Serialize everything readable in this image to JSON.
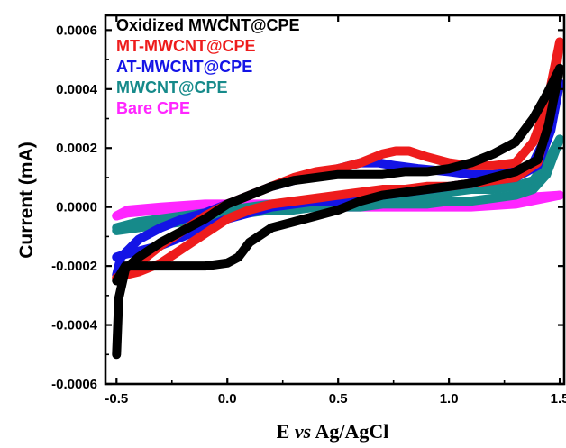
{
  "chart_data": {
    "type": "line",
    "title": "",
    "xlabel": "E vs Ag/AgCl",
    "xlabel_parts": {
      "start": "E ",
      "italic": "vs",
      "end": " Ag/AgCl"
    },
    "ylabel": "Current (mA)",
    "xlim": [
      -0.55,
      1.52
    ],
    "ylim": [
      -0.0006,
      0.00065
    ],
    "x_ticks": [
      -0.5,
      0.0,
      0.5,
      1.0,
      1.5
    ],
    "x_tick_labels": [
      "-0.5",
      "0.0",
      "0.5",
      "1.0",
      "1.5"
    ],
    "y_ticks": [
      -0.0006,
      -0.0004,
      -0.0002,
      0.0,
      0.0002,
      0.0004,
      0.0006
    ],
    "y_tick_labels": [
      "-0.0006",
      "-0.0004",
      "-0.0002",
      "0.0000",
      "0.0002",
      "0.0004",
      "0.0006"
    ],
    "grid": false,
    "legend_position": "top-left",
    "series": [
      {
        "name": "Oxidized MWCNT@CPE",
        "color": "#000000",
        "forward": [
          [
            -0.5,
            -0.0005
          ],
          [
            -0.49,
            -0.00031
          ],
          [
            -0.46,
            -0.00021
          ],
          [
            -0.4,
            -0.00017
          ],
          [
            -0.3,
            -0.00012
          ],
          [
            -0.2,
            -8e-05
          ],
          [
            -0.1,
            -4e-05
          ],
          [
            0.0,
            1e-05
          ],
          [
            0.1,
            4e-05
          ],
          [
            0.2,
            7e-05
          ],
          [
            0.3,
            9e-05
          ],
          [
            0.4,
            0.0001
          ],
          [
            0.5,
            0.00011
          ],
          [
            0.6,
            0.00011
          ],
          [
            0.7,
            0.00011
          ],
          [
            0.8,
            0.00012
          ],
          [
            0.9,
            0.00012
          ],
          [
            1.0,
            0.00013
          ],
          [
            1.1,
            0.00015
          ],
          [
            1.2,
            0.00018
          ],
          [
            1.3,
            0.00022
          ],
          [
            1.38,
            0.0003
          ],
          [
            1.44,
            0.00038
          ],
          [
            1.5,
            0.00047
          ]
        ],
        "reverse": [
          [
            1.5,
            0.00047
          ],
          [
            1.45,
            0.00028
          ],
          [
            1.4,
            0.00016
          ],
          [
            1.3,
            0.00012
          ],
          [
            1.2,
            0.0001
          ],
          [
            1.1,
            8e-05
          ],
          [
            1.0,
            7e-05
          ],
          [
            0.9,
            6e-05
          ],
          [
            0.8,
            5e-05
          ],
          [
            0.7,
            4e-05
          ],
          [
            0.6,
            2e-05
          ],
          [
            0.5,
            -1e-05
          ],
          [
            0.4,
            -3e-05
          ],
          [
            0.3,
            -5e-05
          ],
          [
            0.2,
            -7e-05
          ],
          [
            0.1,
            -0.00012
          ],
          [
            0.05,
            -0.00017
          ],
          [
            0.0,
            -0.00019
          ],
          [
            -0.1,
            -0.0002
          ],
          [
            -0.2,
            -0.0002
          ],
          [
            -0.3,
            -0.0002
          ],
          [
            -0.4,
            -0.0002
          ],
          [
            -0.46,
            -0.0002
          ],
          [
            -0.5,
            -0.00025
          ]
        ]
      },
      {
        "name": "MT-MWCNT@CPE",
        "color": "#ee1c1c",
        "forward": [
          [
            -0.5,
            -0.00024
          ],
          [
            -0.45,
            -0.00022
          ],
          [
            -0.4,
            -0.00019
          ],
          [
            -0.3,
            -0.00013
          ],
          [
            -0.2,
            -8e-05
          ],
          [
            -0.1,
            -3e-05
          ],
          [
            0.0,
            1e-05
          ],
          [
            0.1,
            4e-05
          ],
          [
            0.2,
            7e-05
          ],
          [
            0.3,
            0.0001
          ],
          [
            0.4,
            0.00012
          ],
          [
            0.5,
            0.00013
          ],
          [
            0.6,
            0.00015
          ],
          [
            0.7,
            0.00018
          ],
          [
            0.76,
            0.00019
          ],
          [
            0.82,
            0.00019
          ],
          [
            0.9,
            0.00017
          ],
          [
            1.0,
            0.00015
          ],
          [
            1.1,
            0.00014
          ],
          [
            1.2,
            0.00014
          ],
          [
            1.3,
            0.00015
          ],
          [
            1.38,
            0.00022
          ],
          [
            1.44,
            0.00034
          ],
          [
            1.5,
            0.00056
          ]
        ],
        "reverse": [
          [
            1.5,
            0.00056
          ],
          [
            1.46,
            0.00033
          ],
          [
            1.4,
            0.00015
          ],
          [
            1.3,
            0.0001
          ],
          [
            1.2,
            9e-05
          ],
          [
            1.1,
            8e-05
          ],
          [
            1.0,
            7e-05
          ],
          [
            0.9,
            7e-05
          ],
          [
            0.8,
            6e-05
          ],
          [
            0.7,
            6e-05
          ],
          [
            0.6,
            5e-05
          ],
          [
            0.5,
            4e-05
          ],
          [
            0.4,
            3e-05
          ],
          [
            0.3,
            2e-05
          ],
          [
            0.2,
            1e-05
          ],
          [
            0.1,
            -1e-05
          ],
          [
            0.0,
            -4e-05
          ],
          [
            -0.1,
            -9e-05
          ],
          [
            -0.2,
            -0.00014
          ],
          [
            -0.3,
            -0.00019
          ],
          [
            -0.4,
            -0.00022
          ],
          [
            -0.46,
            -0.00023
          ],
          [
            -0.5,
            -0.00024
          ]
        ]
      },
      {
        "name": "AT-MWCNT@CPE",
        "color": "#1414e6",
        "forward": [
          [
            -0.5,
            -0.00023
          ],
          [
            -0.48,
            -0.00017
          ],
          [
            -0.44,
            -0.00014
          ],
          [
            -0.4,
            -0.00011
          ],
          [
            -0.3,
            -7e-05
          ],
          [
            -0.2,
            -4e-05
          ],
          [
            -0.1,
            -2e-05
          ],
          [
            0.0,
            1e-05
          ],
          [
            0.1,
            4e-05
          ],
          [
            0.2,
            7e-05
          ],
          [
            0.3,
            9e-05
          ],
          [
            0.4,
            0.00011
          ],
          [
            0.5,
            0.00013
          ],
          [
            0.6,
            0.00015
          ],
          [
            0.68,
            0.00015
          ],
          [
            0.76,
            0.00014
          ],
          [
            0.86,
            0.00013
          ],
          [
            1.0,
            0.00012
          ],
          [
            1.1,
            0.00011
          ],
          [
            1.2,
            0.00011
          ],
          [
            1.3,
            0.00012
          ],
          [
            1.38,
            0.00015
          ],
          [
            1.44,
            0.00024
          ],
          [
            1.5,
            0.00042
          ]
        ],
        "reverse": [
          [
            1.5,
            0.00042
          ],
          [
            1.46,
            0.00026
          ],
          [
            1.4,
            0.00014
          ],
          [
            1.3,
            0.0001
          ],
          [
            1.2,
            9e-05
          ],
          [
            1.1,
            8e-05
          ],
          [
            1.0,
            7e-05
          ],
          [
            0.9,
            6e-05
          ],
          [
            0.8,
            5e-05
          ],
          [
            0.7,
            4e-05
          ],
          [
            0.6,
            3e-05
          ],
          [
            0.5,
            2e-05
          ],
          [
            0.4,
            2e-05
          ],
          [
            0.3,
            1e-05
          ],
          [
            0.2,
            0.0
          ],
          [
            0.1,
            -2e-05
          ],
          [
            0.0,
            -4e-05
          ],
          [
            -0.1,
            -7e-05
          ],
          [
            -0.2,
            -0.0001
          ],
          [
            -0.3,
            -0.00013
          ],
          [
            -0.4,
            -0.00015
          ],
          [
            -0.46,
            -0.00016
          ],
          [
            -0.5,
            -0.00017
          ]
        ]
      },
      {
        "name": "MWCNT@CPE",
        "color": "#168a8a",
        "forward": [
          [
            -0.5,
            -7e-05
          ],
          [
            -0.4,
            -5e-05
          ],
          [
            -0.3,
            -4e-05
          ],
          [
            -0.2,
            -3e-05
          ],
          [
            -0.1,
            -2e-05
          ],
          [
            0.0,
            -1e-05
          ],
          [
            0.1,
            0.0
          ],
          [
            0.2,
            1e-05
          ],
          [
            0.3,
            1e-05
          ],
          [
            0.4,
            2e-05
          ],
          [
            0.5,
            2e-05
          ],
          [
            0.6,
            3e-05
          ],
          [
            0.7,
            3e-05
          ],
          [
            0.8,
            4e-05
          ],
          [
            0.9,
            4e-05
          ],
          [
            1.0,
            5e-05
          ],
          [
            1.1,
            6e-05
          ],
          [
            1.2,
            6e-05
          ],
          [
            1.3,
            7e-05
          ],
          [
            1.38,
            9e-05
          ],
          [
            1.44,
            0.00015
          ],
          [
            1.5,
            0.00023
          ]
        ],
        "reverse": [
          [
            1.5,
            0.00023
          ],
          [
            1.44,
            0.00011
          ],
          [
            1.38,
            6e-05
          ],
          [
            1.3,
            4e-05
          ],
          [
            1.2,
            3e-05
          ],
          [
            1.1,
            2e-05
          ],
          [
            1.0,
            2e-05
          ],
          [
            0.9,
            1e-05
          ],
          [
            0.8,
            1e-05
          ],
          [
            0.7,
            1e-05
          ],
          [
            0.6,
            0.0
          ],
          [
            0.5,
            0.0
          ],
          [
            0.4,
            0.0
          ],
          [
            0.3,
            -1e-05
          ],
          [
            0.2,
            -1e-05
          ],
          [
            0.1,
            -2e-05
          ],
          [
            0.0,
            -3e-05
          ],
          [
            -0.1,
            -4e-05
          ],
          [
            -0.2,
            -5e-05
          ],
          [
            -0.3,
            -6e-05
          ],
          [
            -0.4,
            -7e-05
          ],
          [
            -0.5,
            -8e-05
          ]
        ]
      },
      {
        "name": "Bare CPE",
        "color": "#ff26ff",
        "forward": [
          [
            -0.5,
            -3e-05
          ],
          [
            -0.45,
            -1e-05
          ],
          [
            -0.3,
            0.0
          ],
          [
            -0.1,
            1e-05
          ],
          [
            0.1,
            1e-05
          ],
          [
            0.3,
            1e-05
          ],
          [
            0.5,
            1e-05
          ],
          [
            0.7,
            1e-05
          ],
          [
            0.9,
            2e-05
          ],
          [
            1.1,
            2e-05
          ],
          [
            1.3,
            3e-05
          ],
          [
            1.5,
            4e-05
          ]
        ],
        "reverse": [
          [
            1.5,
            4e-05
          ],
          [
            1.3,
            1e-05
          ],
          [
            1.1,
            0.0
          ],
          [
            0.9,
            0.0
          ],
          [
            0.7,
            0.0
          ],
          [
            0.5,
            0.0
          ],
          [
            0.3,
            0.0
          ],
          [
            0.1,
            -1e-05
          ],
          [
            -0.1,
            -1e-05
          ],
          [
            -0.3,
            -1e-05
          ],
          [
            -0.45,
            -2e-05
          ],
          [
            -0.5,
            -3e-05
          ]
        ]
      }
    ]
  }
}
